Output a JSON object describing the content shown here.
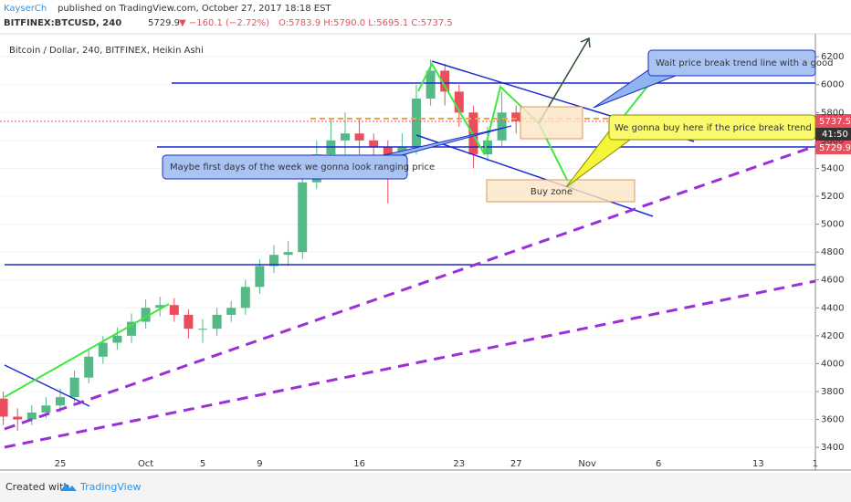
{
  "header": {
    "publisher": "KayserCh",
    "published": "published on TradingView.com, October 27, 2017 18:18 EST",
    "symbol": "BITFINEX:BTCUSD, 240",
    "last": "5729.9",
    "change": "▼ −160.1 (−2.72%)",
    "ohlc": "O:5783.9 H:5790.0 L:5695.1 C:5737.5"
  },
  "chart_data": {
    "type": "candlestick",
    "title": "Bitcoin / Dollar, 240, BITFINEX, Heikin Ashi",
    "categories": [
      null,
      null,
      null,
      null,
      "25",
      null,
      null,
      null,
      null,
      null,
      "Oct",
      null,
      null,
      null,
      "5",
      null,
      null,
      null,
      "9",
      null,
      null,
      null,
      null,
      null,
      null,
      "16",
      null,
      null,
      null,
      null,
      null,
      null,
      "23",
      null,
      null,
      null,
      "27",
      null,
      null,
      null,
      null,
      "Nov",
      null,
      null,
      null,
      null,
      "6",
      null,
      null,
      null,
      null,
      null,
      null,
      "13",
      null,
      null,
      null,
      "1"
    ],
    "open": [
      3750,
      3620,
      3600,
      3650,
      3700,
      3760,
      3900,
      4050,
      4150,
      4200,
      4300,
      4400,
      4420,
      4350,
      4250,
      4250,
      4350,
      4400,
      4550,
      4700,
      4780,
      4800,
      5300,
      5500,
      5600,
      5650,
      5600,
      5550,
      5400,
      5550,
      5900,
      6100,
      5950,
      5800,
      5500,
      5600,
      5800,
      null,
      null,
      null,
      null,
      null,
      null,
      null,
      null,
      null,
      null,
      null,
      null,
      null,
      null,
      null,
      null,
      null,
      null,
      null,
      null,
      null
    ],
    "high": [
      3800,
      3680,
      3700,
      3760,
      3820,
      3950,
      4100,
      4200,
      4260,
      4360,
      4460,
      4480,
      4470,
      4390,
      4320,
      4400,
      4450,
      4600,
      4750,
      4850,
      4880,
      5350,
      5600,
      5750,
      5800,
      5750,
      5650,
      5600,
      5650,
      6000,
      6180,
      6150,
      6000,
      5850,
      5700,
      5950,
      5850,
      null,
      null,
      null,
      null,
      null,
      null,
      null,
      null,
      null,
      null,
      null,
      null,
      null,
      null,
      null,
      null,
      null,
      null,
      null,
      null,
      null
    ],
    "low": [
      3560,
      3520,
      3560,
      3610,
      3650,
      3720,
      3860,
      4000,
      4100,
      4150,
      4250,
      4340,
      4300,
      4180,
      4150,
      4200,
      4300,
      4350,
      4500,
      4650,
      4700,
      4750,
      5250,
      5450,
      5500,
      5500,
      5400,
      5150,
      5350,
      5500,
      5850,
      5850,
      5700,
      5400,
      5450,
      5550,
      5650,
      null,
      null,
      null,
      null,
      null,
      null,
      null,
      null,
      null,
      null,
      null,
      null,
      null,
      null,
      null,
      null,
      null,
      null,
      null,
      null,
      null
    ],
    "close": [
      3620,
      3600,
      3650,
      3700,
      3760,
      3900,
      4050,
      4150,
      4200,
      4300,
      4400,
      4420,
      4350,
      4250,
      4250,
      4350,
      4400,
      4550,
      4700,
      4780,
      4800,
      5300,
      5500,
      5600,
      5650,
      5600,
      5550,
      5400,
      5550,
      5900,
      6100,
      5950,
      5800,
      5500,
      5600,
      5800,
      5737.5,
      null,
      null,
      null,
      null,
      null,
      null,
      null,
      null,
      null,
      null,
      null,
      null,
      null,
      null,
      null,
      null,
      null,
      null,
      null,
      null,
      null
    ],
    "up_color": "#53b987",
    "down_color": "#eb4d5c",
    "ylim": [
      3270,
      6345
    ],
    "yticks": [
      3400,
      3600,
      3800,
      4000,
      4200,
      4400,
      4600,
      4800,
      5000,
      5200,
      5400,
      5600,
      5800,
      6000,
      6200
    ],
    "price_labels": [
      "5737.5",
      "41:50",
      "5729.9"
    ],
    "annotations": [
      "Maybe first days of the week we gonna look ranging price",
      "Wait price break trend line with a good",
      "We gonna buy here if the price break trend line  w",
      "Buy zone"
    ]
  },
  "footer": {
    "created": "Created with",
    "brand": "TradingView"
  }
}
